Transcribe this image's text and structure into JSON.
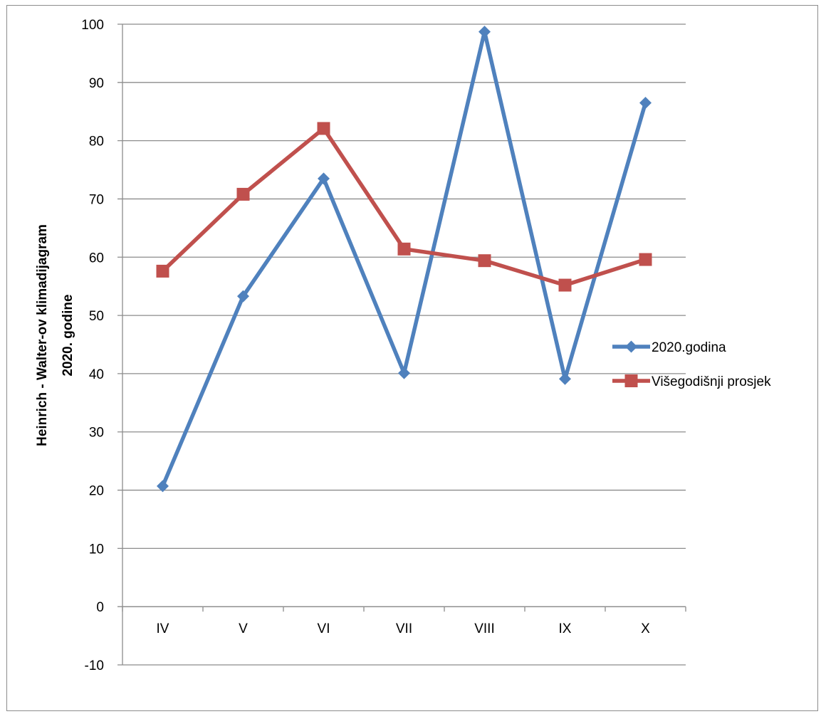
{
  "chart_data": {
    "type": "line",
    "title": "",
    "xlabel": "",
    "ylabel_lines": [
      "Heinrich - Walter-ov klimadijagram",
      "2020. godine"
    ],
    "categories": [
      "IV",
      "V",
      "VI",
      "VII",
      "VIII",
      "IX",
      "X"
    ],
    "ylim": [
      -10,
      100
    ],
    "yticks": [
      -10,
      0,
      10,
      20,
      30,
      40,
      50,
      60,
      70,
      80,
      90,
      100
    ],
    "grid": "horizontal",
    "legend_position": "right",
    "series": [
      {
        "name": "2020.godina",
        "color": "#4F81BD",
        "marker": "diamond",
        "values": [
          20.7,
          53.3,
          73.5,
          40.1,
          98.7,
          39.1,
          86.5
        ]
      },
      {
        "name": "Višegodišnji prosjek",
        "color": "#C0504D",
        "marker": "square",
        "values": [
          57.6,
          70.8,
          82.1,
          61.4,
          59.4,
          55.2,
          59.6
        ]
      }
    ]
  }
}
